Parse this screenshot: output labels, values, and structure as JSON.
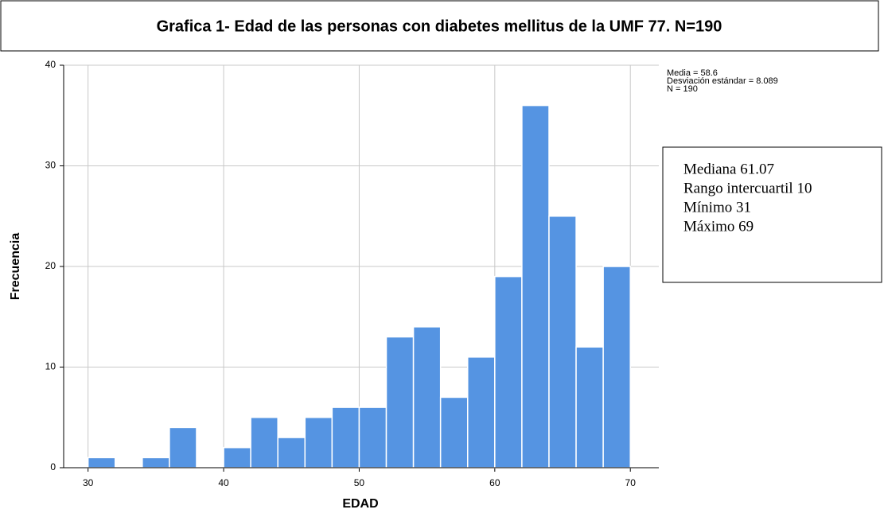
{
  "chart_data": {
    "type": "histogram",
    "title": "Grafica 1- Edad de las personas con diabetes mellitus de la UMF 77. N=190",
    "xlabel": "EDAD",
    "ylabel": "Frecuencia",
    "bins": [
      30,
      32,
      34,
      36,
      38,
      40,
      42,
      44,
      46,
      48,
      50,
      52,
      54,
      56,
      58,
      60,
      62,
      64,
      66,
      68,
      70
    ],
    "counts": [
      1,
      0,
      1,
      4,
      0,
      2,
      5,
      3,
      5,
      6,
      6,
      13,
      14,
      7,
      11,
      19,
      36,
      25,
      12,
      20
    ],
    "color": "#5594e2",
    "xlim": [
      28.2,
      72.1
    ],
    "ylim": [
      0,
      40
    ],
    "xticks": [
      30,
      40,
      50,
      60,
      70
    ],
    "yticks": [
      0,
      10,
      20,
      30,
      40
    ],
    "grid": true,
    "stats": [
      "Media = 58.6",
      "Desviación estándar = 8.089",
      "N = 190"
    ],
    "annotation": [
      "Mediana 61.07",
      "Rango intercuartil 10",
      "Mínimo 31",
      "Máximo 69"
    ]
  }
}
